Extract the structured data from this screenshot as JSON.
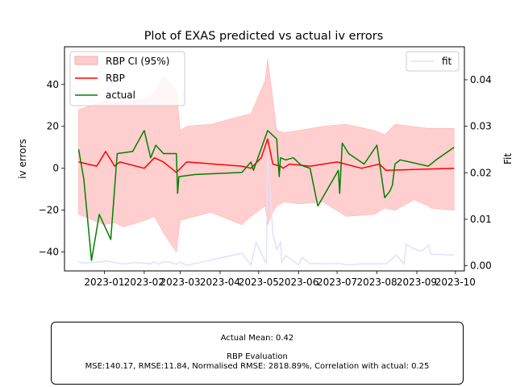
{
  "chart_data": {
    "type": "line",
    "title": "Plot of EXAS predicted vs actual iv errors",
    "ylabel": "iv errors",
    "y2label": "Fit",
    "xlim": [
      "2022-12-01",
      "2023-10-08"
    ],
    "ylim": [
      -49,
      58
    ],
    "y2lim": [
      -0.0011,
      0.0471
    ],
    "x_ticks": [
      "2023-01",
      "2023-02",
      "2023-03",
      "2023-04",
      "2023-05",
      "2023-06",
      "2023-07",
      "2023-08",
      "2023-09",
      "2023-10"
    ],
    "y_ticks": [
      40,
      20,
      0,
      -20,
      -40
    ],
    "y2_ticks": [
      "0.04",
      "0.03",
      "0.02",
      "0.01",
      "0.00"
    ],
    "legend_left": {
      "position": "upper left",
      "entries": [
        "RBP CI (95%)",
        "RBP",
        "actual"
      ]
    },
    "legend_right": {
      "position": "upper right",
      "entries": [
        "fit"
      ]
    },
    "colors": {
      "ci": "#ffcccc",
      "rbp": "#ff0000",
      "actual": "#008000",
      "fit": "#e0e0ff"
    },
    "ci_upper": [
      [
        "2022-12-12",
        28
      ],
      [
        "2023-01-01",
        32
      ],
      [
        "2023-01-09",
        31
      ],
      [
        "2023-01-16",
        32
      ],
      [
        "2023-02-01",
        33
      ],
      [
        "2023-02-09",
        36
      ],
      [
        "2023-02-16",
        44
      ],
      [
        "2023-02-26",
        37
      ],
      [
        "2023-03-01",
        18
      ],
      [
        "2023-03-06",
        20
      ],
      [
        "2023-03-25",
        21
      ],
      [
        "2023-04-18",
        25
      ],
      [
        "2023-04-25",
        26
      ],
      [
        "2023-05-06",
        42
      ],
      [
        "2023-05-08",
        52
      ],
      [
        "2023-05-11",
        38
      ],
      [
        "2023-05-15",
        18
      ],
      [
        "2023-05-21",
        17
      ],
      [
        "2023-06-01",
        18
      ],
      [
        "2023-06-20",
        20
      ],
      [
        "2023-07-08",
        21
      ],
      [
        "2023-07-30",
        18
      ],
      [
        "2023-08-07",
        16
      ],
      [
        "2023-08-15",
        21
      ],
      [
        "2023-09-10",
        19
      ],
      [
        "2023-09-12",
        19
      ],
      [
        "2023-09-30",
        19
      ]
    ],
    "ci_lower": [
      [
        "2023-09-30",
        -20
      ],
      [
        "2023-09-12",
        -19
      ],
      [
        "2023-09-10",
        -18
      ],
      [
        "2023-08-30",
        -15
      ],
      [
        "2023-08-15",
        -20
      ],
      [
        "2023-08-07",
        -19
      ],
      [
        "2023-07-30",
        -22
      ],
      [
        "2023-07-08",
        -23
      ],
      [
        "2023-06-20",
        -16
      ],
      [
        "2023-06-01",
        -17
      ],
      [
        "2023-05-21",
        -16
      ],
      [
        "2023-05-15",
        -18
      ],
      [
        "2023-05-11",
        -22
      ],
      [
        "2023-05-08",
        -27
      ],
      [
        "2023-05-06",
        -18
      ],
      [
        "2023-04-25",
        -23
      ],
      [
        "2023-04-18",
        -27
      ],
      [
        "2023-03-25",
        -21
      ],
      [
        "2023-03-06",
        -24
      ],
      [
        "2023-03-01",
        -25
      ],
      [
        "2023-02-26",
        -40
      ],
      [
        "2023-02-16",
        -31
      ],
      [
        "2023-02-09",
        -23
      ],
      [
        "2023-02-01",
        -25
      ],
      [
        "2023-01-16",
        -28
      ],
      [
        "2023-01-09",
        -26
      ],
      [
        "2023-01-01",
        -27
      ],
      [
        "2022-12-12",
        -22
      ]
    ],
    "series": [
      {
        "name": "RBP",
        "points": [
          [
            "2022-12-12",
            3
          ],
          [
            "2022-12-26",
            1
          ],
          [
            "2023-01-02",
            8
          ],
          [
            "2023-01-09",
            1
          ],
          [
            "2023-01-13",
            3
          ],
          [
            "2023-02-01",
            0
          ],
          [
            "2023-02-09",
            5
          ],
          [
            "2023-02-16",
            3
          ],
          [
            "2023-02-26",
            -2
          ],
          [
            "2023-03-06",
            3
          ],
          [
            "2023-04-18",
            1
          ],
          [
            "2023-04-25",
            0
          ],
          [
            "2023-05-03",
            5
          ],
          [
            "2023-05-08",
            14
          ],
          [
            "2023-05-12",
            2
          ],
          [
            "2023-05-18",
            1
          ],
          [
            "2023-05-20",
            0
          ],
          [
            "2023-05-25",
            2
          ],
          [
            "2023-06-10",
            1
          ],
          [
            "2023-07-01",
            3
          ],
          [
            "2023-07-20",
            0
          ],
          [
            "2023-08-03",
            2
          ],
          [
            "2023-08-08",
            -1
          ],
          [
            "2023-09-30",
            0
          ]
        ]
      },
      {
        "name": "actual",
        "points": [
          [
            "2022-12-12",
            9
          ],
          [
            "2022-12-16",
            -5
          ],
          [
            "2022-12-22",
            -44
          ],
          [
            "2022-12-28",
            -22
          ],
          [
            "2023-01-06",
            -34
          ],
          [
            "2023-01-11",
            7
          ],
          [
            "2023-01-23",
            8
          ],
          [
            "2023-02-01",
            18
          ],
          [
            "2023-02-06",
            5
          ],
          [
            "2023-02-10",
            11
          ],
          [
            "2023-02-16",
            7
          ],
          [
            "2023-02-20",
            7
          ],
          [
            "2023-02-26",
            7
          ],
          [
            "2023-02-27",
            -12
          ],
          [
            "2023-02-28",
            -4
          ],
          [
            "2023-03-12",
            -3
          ],
          [
            "2023-04-18",
            -2
          ],
          [
            "2023-04-25",
            3
          ],
          [
            "2023-04-27",
            -1
          ],
          [
            "2023-05-08",
            18
          ],
          [
            "2023-05-15",
            14
          ],
          [
            "2023-05-17",
            -4
          ],
          [
            "2023-05-18",
            5
          ],
          [
            "2023-05-22",
            4
          ],
          [
            "2023-05-28",
            5
          ],
          [
            "2023-06-02",
            2
          ],
          [
            "2023-06-05",
            1
          ],
          [
            "2023-06-10",
            0
          ],
          [
            "2023-06-16",
            -18
          ],
          [
            "2023-07-02",
            -1
          ],
          [
            "2023-07-03",
            -12
          ],
          [
            "2023-07-05",
            12
          ],
          [
            "2023-07-10",
            7
          ],
          [
            "2023-07-22",
            2
          ],
          [
            "2023-08-01",
            11
          ],
          [
            "2023-08-07",
            -14
          ],
          [
            "2023-08-11",
            -11
          ],
          [
            "2023-08-13",
            -8
          ],
          [
            "2023-08-15",
            2
          ],
          [
            "2023-08-19",
            4
          ],
          [
            "2023-09-10",
            1
          ],
          [
            "2023-09-16",
            4
          ],
          [
            "2023-09-30",
            10
          ]
        ]
      }
    ],
    "fit_series": {
      "name": "fit",
      "points": [
        [
          "2022-12-12",
          0.0008
        ],
        [
          "2022-12-16",
          0.0006
        ],
        [
          "2022-12-22",
          0.0007
        ],
        [
          "2023-01-04",
          0.001
        ],
        [
          "2023-01-10",
          0.0006
        ],
        [
          "2023-01-18",
          0.0004
        ],
        [
          "2023-01-24",
          0.0007
        ],
        [
          "2023-02-01",
          0.0006
        ],
        [
          "2023-02-06",
          0.0004
        ],
        [
          "2023-02-09",
          0.0009
        ],
        [
          "2023-02-12",
          0.0003
        ],
        [
          "2023-02-16",
          0.0009
        ],
        [
          "2023-02-20",
          0.0008
        ],
        [
          "2023-02-26",
          0.0003
        ],
        [
          "2023-03-01",
          0.0008
        ],
        [
          "2023-03-06",
          0.0001
        ],
        [
          "2023-04-18",
          0.0027
        ],
        [
          "2023-04-25",
          0.0002
        ],
        [
          "2023-04-29",
          0.005
        ],
        [
          "2023-05-06",
          0.001
        ],
        [
          "2023-05-07",
          0.0005
        ],
        [
          "2023-05-08",
          0.024
        ],
        [
          "2023-05-10",
          0.016
        ],
        [
          "2023-05-12",
          0.0068
        ],
        [
          "2023-05-15",
          0.0035
        ],
        [
          "2023-05-18",
          0.005
        ],
        [
          "2023-05-19",
          0.0007
        ],
        [
          "2023-05-22",
          0.0022
        ],
        [
          "2023-06-01",
          0.0002
        ],
        [
          "2023-06-04",
          0.0018
        ],
        [
          "2023-06-10",
          0.0004
        ],
        [
          "2023-06-15",
          0.0005
        ],
        [
          "2023-06-20",
          0.0004
        ],
        [
          "2023-07-02",
          0.0005
        ],
        [
          "2023-07-10",
          0.0002
        ],
        [
          "2023-07-20",
          0.0004
        ],
        [
          "2023-07-30",
          0.0004
        ],
        [
          "2023-08-08",
          0.0004
        ],
        [
          "2023-08-16",
          0.0023
        ],
        [
          "2023-08-22",
          0.0004
        ],
        [
          "2023-08-24",
          0.0046
        ],
        [
          "2023-08-27",
          0.004
        ],
        [
          "2023-09-02",
          0.0033
        ],
        [
          "2023-09-05",
          0.0032
        ],
        [
          "2023-09-10",
          0.0044
        ],
        [
          "2023-09-12",
          0.0025
        ],
        [
          "2023-09-30",
          0.0023
        ]
      ]
    }
  },
  "evaluation": {
    "actual_mean": "Actual Mean: 0.42",
    "heading": "RBP Evaluation",
    "metrics": "MSE:140.17, RMSE:11.84, Normalised RMSE: 2818.89%, Correlation with actual: 0.25"
  }
}
